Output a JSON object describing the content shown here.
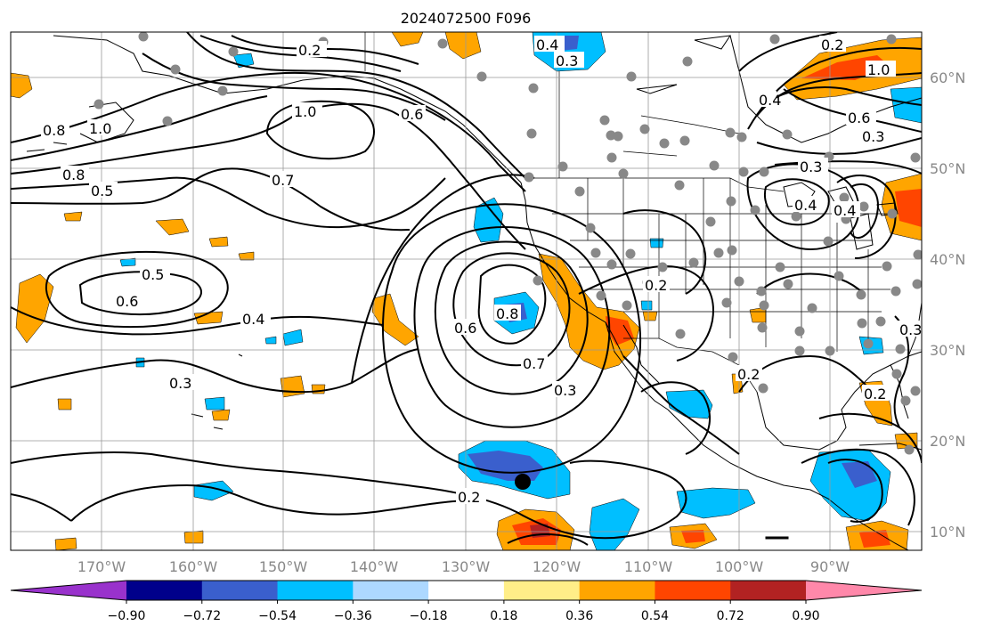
{
  "title": "2024072500 F096",
  "lon_labels": [
    "170°W",
    "160°W",
    "150°W",
    "140°W",
    "130°W",
    "120°W",
    "110°W",
    "100°W",
    "90°W"
  ],
  "lat_labels": [
    "60°N",
    "50°N",
    "40°N",
    "30°N",
    "20°N",
    "10°N"
  ],
  "contour_labels": {
    "c02_top": "0.2",
    "c04_top": "0.4",
    "c03_top": "0.3",
    "c06_ak": "0.6",
    "c10_gyre": "1.0",
    "c08_w": "0.8",
    "c10_w": "1.0",
    "c08_w2": "0.8",
    "c05_w": "0.5",
    "c07_c": "0.7",
    "c05_mid": "0.5",
    "c06_mid": "0.6",
    "c04_mid": "0.4",
    "c03_mid": "0.3",
    "c06_cal": "0.6",
    "c08_cal": "0.8",
    "c07_cal": "0.7",
    "c03_cal": "0.3",
    "c02_bot": "0.2",
    "c02_sw": "0.2",
    "c02_mex": "0.2",
    "c02_gulf": "0.2",
    "c10_ne": "1.0",
    "c06_ne": "0.6",
    "c03_ne": "0.3",
    "c03_ne2": "0.3",
    "c04_ne": "0.4",
    "c04_gl": "0.4",
    "c04_gl2": "0.4",
    "c02_w2": "0.2",
    "c03_e": "0.3"
  },
  "colorbar": {
    "tick_labels": [
      "−0.90",
      "−0.72",
      "−0.54",
      "−0.36",
      "−0.18",
      "0.18",
      "0.36",
      "0.54",
      "0.72",
      "0.90"
    ],
    "colors": [
      "#9932cc",
      "#00008b",
      "#3a5fcd",
      "#00bfff",
      "#add8ff",
      "#ffffff",
      "#ffee88",
      "#ffa500",
      "#ff4500",
      "#b22222",
      "#ff88aa"
    ]
  },
  "fill_colors": {
    "blue_light": "#00bfff",
    "blue_mid": "#3a5fcd",
    "orange": "#ffa500",
    "red": "#ff4500",
    "dark_red": "#b22222",
    "station": "#888888"
  }
}
